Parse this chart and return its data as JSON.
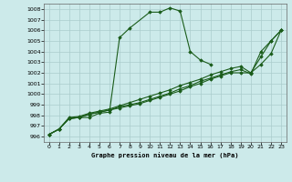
{
  "title": "Graphe pression niveau de la mer (hPa)",
  "background_color": "#cceaea",
  "grid_color": "#aacccc",
  "line_color": "#1a5c1a",
  "xlim": [
    -0.5,
    23.5
  ],
  "ylim": [
    995.5,
    1008.5
  ],
  "xticks": [
    0,
    1,
    2,
    3,
    4,
    5,
    6,
    7,
    8,
    9,
    10,
    11,
    12,
    13,
    14,
    15,
    16,
    17,
    18,
    19,
    20,
    21,
    22,
    23
  ],
  "yticks": [
    996,
    997,
    998,
    999,
    1000,
    1001,
    1002,
    1003,
    1004,
    1005,
    1006,
    1007,
    1008
  ],
  "line1_x": [
    0,
    1,
    2,
    3,
    4,
    5,
    6,
    7,
    8,
    10,
    11,
    12,
    13,
    14,
    15,
    16
  ],
  "line1_y": [
    996.2,
    996.7,
    997.7,
    997.8,
    997.8,
    998.2,
    998.3,
    1005.3,
    1006.2,
    1007.7,
    1007.7,
    1008.1,
    1007.8,
    1004.0,
    1003.2,
    1002.8
  ],
  "line2_x": [
    0,
    1,
    2,
    3,
    4,
    5,
    6,
    7,
    8,
    9,
    10,
    11,
    12,
    13,
    14,
    15,
    16,
    17,
    18,
    19,
    20,
    21,
    22,
    23
  ],
  "line2_y": [
    996.2,
    996.7,
    997.7,
    997.8,
    998.1,
    998.3,
    998.5,
    998.7,
    998.9,
    999.1,
    999.4,
    999.7,
    1000.0,
    1000.3,
    1000.7,
    1001.0,
    1001.4,
    1001.7,
    1002.0,
    1002.0,
    1002.0,
    1003.5,
    1005.0,
    1006.0
  ],
  "line3_x": [
    0,
    1,
    2,
    3,
    4,
    5,
    6,
    7,
    8,
    9,
    10,
    11,
    12,
    13,
    14,
    15,
    16,
    17,
    18,
    19,
    20,
    21,
    22,
    23
  ],
  "line3_y": [
    996.2,
    996.7,
    997.7,
    997.8,
    998.1,
    998.3,
    998.5,
    998.8,
    999.0,
    999.2,
    999.5,
    999.8,
    1000.1,
    1000.5,
    1000.8,
    1001.2,
    1001.5,
    1001.8,
    1002.1,
    1002.3,
    1001.9,
    1004.0,
    1005.0,
    1006.0
  ],
  "line4_x": [
    0,
    1,
    2,
    3,
    4,
    5,
    6,
    7,
    8,
    9,
    10,
    11,
    12,
    13,
    14,
    15,
    16,
    17,
    18,
    19,
    20,
    21,
    22,
    23
  ],
  "line4_y": [
    996.2,
    996.7,
    997.8,
    997.9,
    998.2,
    998.4,
    998.6,
    998.9,
    999.2,
    999.5,
    999.8,
    1000.1,
    1000.4,
    1000.8,
    1001.1,
    1001.4,
    1001.8,
    1002.1,
    1002.4,
    1002.6,
    1002.0,
    1002.8,
    1003.8,
    1006.0
  ]
}
